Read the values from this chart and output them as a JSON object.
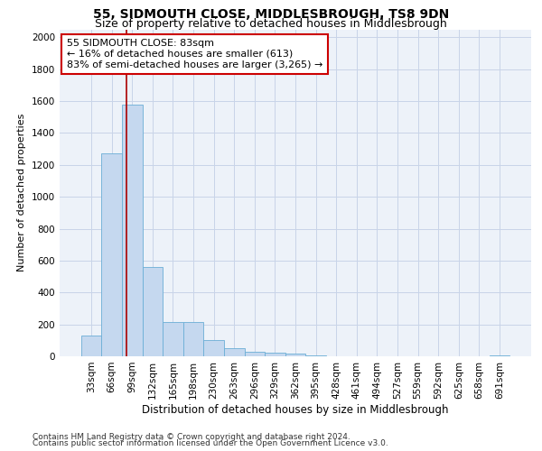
{
  "title": "55, SIDMOUTH CLOSE, MIDDLESBROUGH, TS8 9DN",
  "subtitle": "Size of property relative to detached houses in Middlesbrough",
  "xlabel": "Distribution of detached houses by size in Middlesbrough",
  "ylabel": "Number of detached properties",
  "categories": [
    "33sqm",
    "66sqm",
    "99sqm",
    "132sqm",
    "165sqm",
    "198sqm",
    "230sqm",
    "263sqm",
    "296sqm",
    "329sqm",
    "362sqm",
    "395sqm",
    "428sqm",
    "461sqm",
    "494sqm",
    "527sqm",
    "559sqm",
    "592sqm",
    "625sqm",
    "658sqm",
    "691sqm"
  ],
  "values": [
    130,
    1270,
    1580,
    560,
    215,
    215,
    100,
    50,
    30,
    20,
    15,
    8,
    0,
    0,
    0,
    0,
    0,
    0,
    0,
    0,
    5
  ],
  "bar_color": "#c5d8ef",
  "bar_edge_color": "#6baed6",
  "vline_x": 1.72,
  "vline_color": "#aa0000",
  "annotation_text": "55 SIDMOUTH CLOSE: 83sqm\n← 16% of detached houses are smaller (613)\n83% of semi-detached houses are larger (3,265) →",
  "annotation_box_color": "#ffffff",
  "annotation_box_edge_color": "#cc0000",
  "ylim": [
    0,
    2050
  ],
  "yticks": [
    0,
    200,
    400,
    600,
    800,
    1000,
    1200,
    1400,
    1600,
    1800,
    2000
  ],
  "grid_color": "#c8d4e8",
  "background_color": "#edf2f9",
  "footer_line1": "Contains HM Land Registry data © Crown copyright and database right 2024.",
  "footer_line2": "Contains public sector information licensed under the Open Government Licence v3.0.",
  "title_fontsize": 10,
  "subtitle_fontsize": 9,
  "xlabel_fontsize": 8.5,
  "ylabel_fontsize": 8,
  "tick_fontsize": 7.5,
  "footer_fontsize": 6.5,
  "annotation_fontsize": 8
}
